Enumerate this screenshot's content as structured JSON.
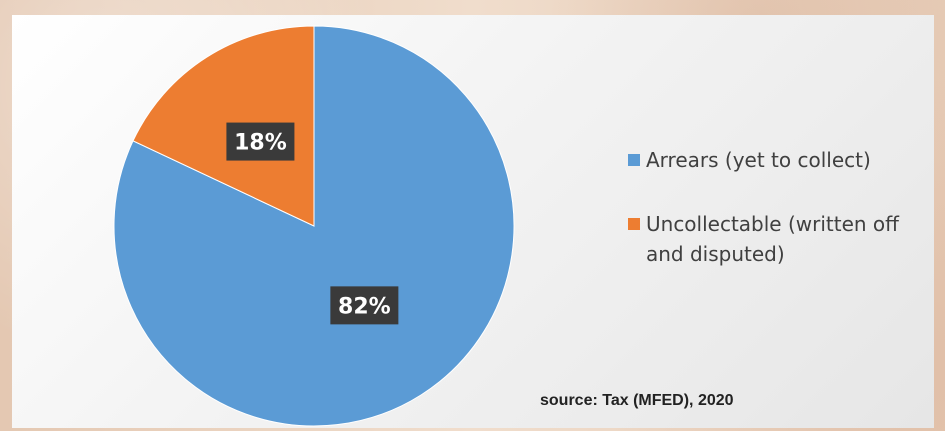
{
  "chart_data": {
    "type": "pie",
    "slices": [
      {
        "label": "Arrears (yet to collect)",
        "value": 82,
        "display": "82%",
        "color": "#5b9bd5"
      },
      {
        "label": "Uncollectable (written off and disputed)",
        "value": 18,
        "display": "18%",
        "color": "#ed7d31"
      }
    ],
    "legend": {
      "placement": "right",
      "items": [
        {
          "label": "Arrears (yet to collect)",
          "color": "#5b9bd5"
        },
        {
          "label": "Uncollectable (written off and disputed)",
          "color": "#ed7d31"
        }
      ]
    },
    "annotation": "source: Tax (MFED), 2020"
  }
}
